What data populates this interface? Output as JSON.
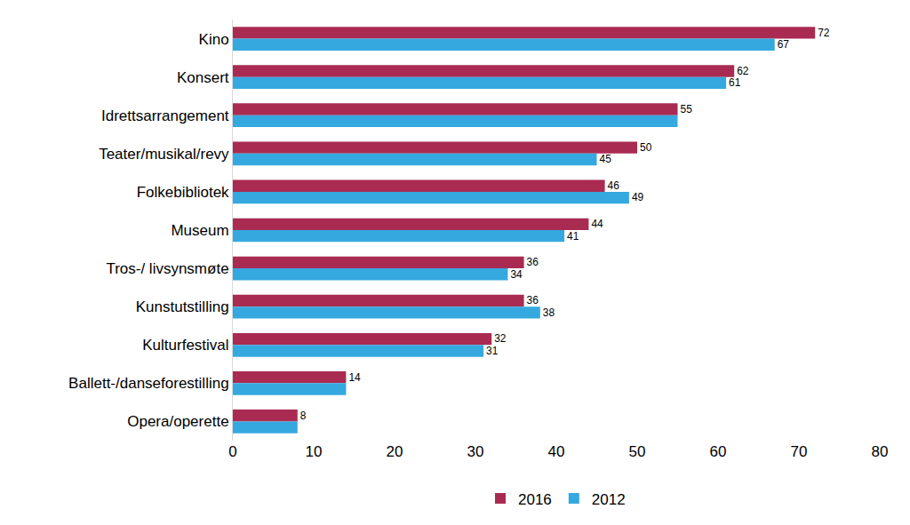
{
  "chart_data": {
    "type": "bar",
    "orientation": "horizontal",
    "categories": [
      "Kino",
      "Konsert",
      "Idrettsarrangement",
      "Teater/musikal/revy",
      "Folkebibliotek",
      "Museum",
      "Tros-/ livsynsmøte",
      "Kunstutstilling",
      "Kulturfestival",
      "Ballett-/danseforestilling",
      "Opera/operette"
    ],
    "series": [
      {
        "name": "2016",
        "color": "#A92B52",
        "values": [
          72,
          62,
          55,
          50,
          46,
          44,
          36,
          36,
          32,
          14,
          8
        ],
        "value_labels": [
          "72",
          "62",
          "55",
          "50",
          "46",
          "44",
          "36",
          "36",
          "32",
          "14",
          "8"
        ]
      },
      {
        "name": "2012",
        "color": "#35A8E0",
        "values": [
          67,
          61,
          55,
          45,
          49,
          41,
          34,
          38,
          31,
          14,
          8
        ],
        "value_labels": [
          "67",
          "61",
          null,
          "45",
          "49",
          "41",
          "34",
          "38",
          "31",
          null,
          null
        ]
      }
    ],
    "xlim": [
      0,
      80
    ],
    "xticks": [
      0,
      10,
      20,
      30,
      40,
      50,
      60,
      70,
      80
    ],
    "grid": false,
    "legend": "bottom",
    "data_labels": true
  }
}
